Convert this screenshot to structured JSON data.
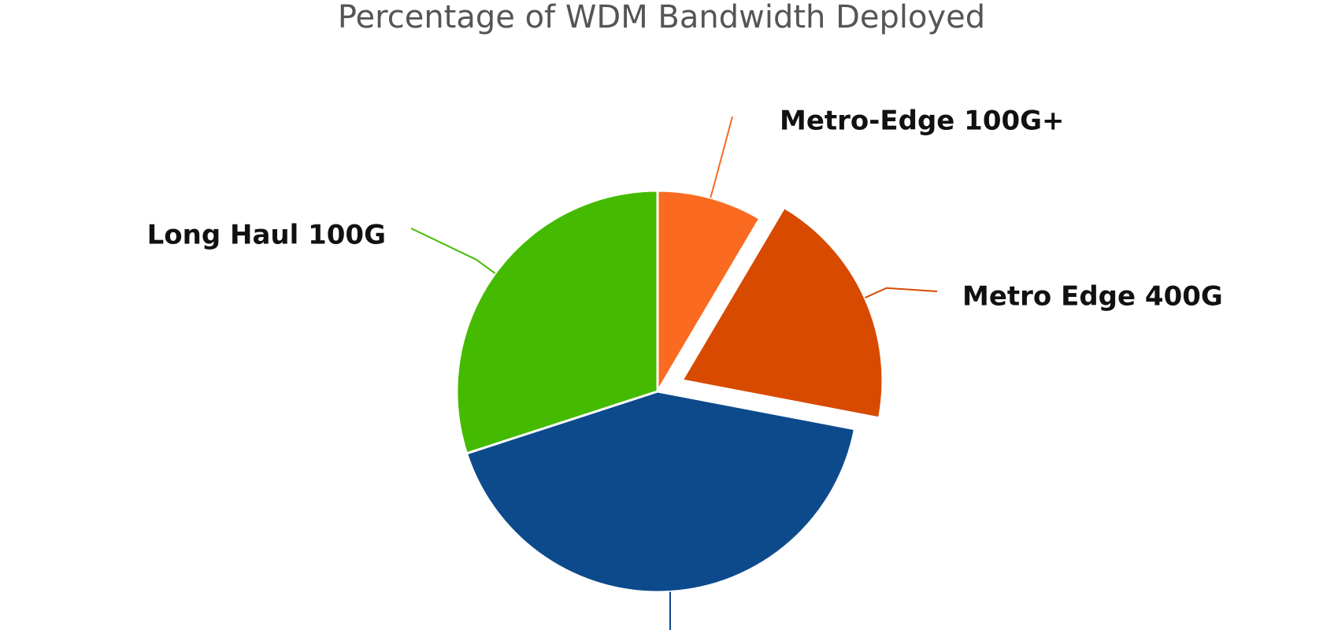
{
  "chart_data": {
    "type": "pie",
    "title": "Percentage of WDM Bandwidth Deployed",
    "slices": [
      {
        "label": "Metro-Edge 100G+",
        "value": 8.5,
        "color": "#fa6a20",
        "exploded": false
      },
      {
        "label": "Metro Edge 400G",
        "value": 19.5,
        "color": "#d84a00",
        "exploded": true
      },
      {
        "label": "",
        "value": 42,
        "color": "#0d4a8c",
        "exploded": false
      },
      {
        "label": "Long Haul 100G",
        "value": 30,
        "color": "#44bb00",
        "exploded": false
      }
    ],
    "start_angle": "12 o'clock",
    "direction": "clockwise"
  }
}
